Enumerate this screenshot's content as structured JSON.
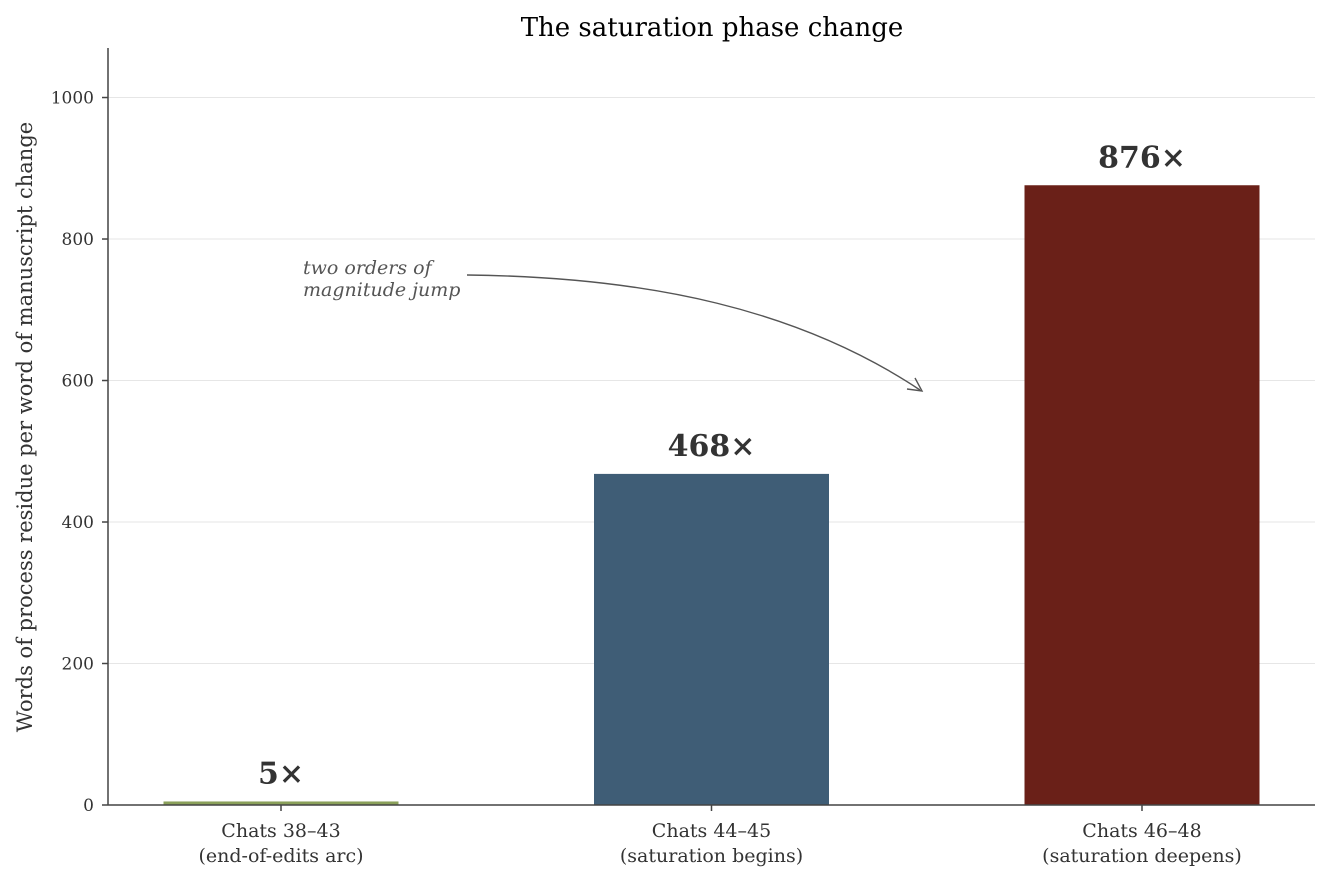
{
  "chart_data": {
    "type": "bar",
    "title": "The saturation phase change",
    "xlabel": "",
    "ylabel": "Words of process residue per word of manuscript change",
    "categories": [
      [
        "Chats 38–43",
        "(end-of-edits arc)"
      ],
      [
        "Chats 44–45",
        "(saturation begins)"
      ],
      [
        "Chats 46–48",
        "(saturation deepens)"
      ]
    ],
    "values": [
      5,
      468,
      876
    ],
    "data_labels": [
      "5×",
      "468×",
      "876×"
    ],
    "colors": [
      "#8aa05a",
      "#3f5d76",
      "#6a2018"
    ],
    "ylim": [
      0,
      1070
    ],
    "yticks": [
      0,
      200,
      400,
      600,
      800,
      1000
    ],
    "grid": true,
    "annotation": {
      "text": [
        "two orders of",
        "magnitude jump"
      ]
    }
  }
}
